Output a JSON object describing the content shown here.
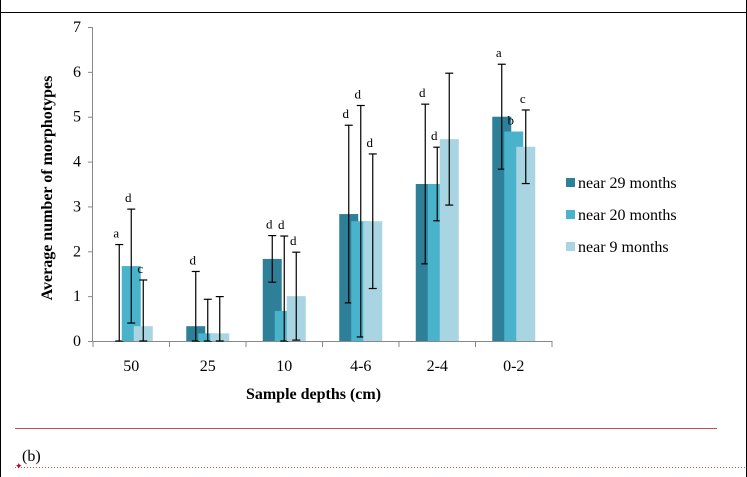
{
  "panel_label": "(b)",
  "colors": {
    "near 29 months": "#2e8098",
    "near 20 months": "#48b3cb",
    "near 9 months": "#a9d4e2",
    "divider": "#c0504d",
    "error_bar": "#000000"
  },
  "chart_data": {
    "type": "bar",
    "title": "",
    "xlabel": "Sample depths (cm)",
    "ylabel": "Average number of morphotypes",
    "ylim": [
      0,
      7
    ],
    "yticks": [
      "0",
      "1",
      "2",
      "3",
      "4",
      "5",
      "6",
      "7"
    ],
    "categories": [
      "50",
      "25",
      "10",
      "4-6",
      "2-4",
      "0-2"
    ],
    "legend_position": "right",
    "grid": false,
    "series": [
      {
        "name": "near 29 months",
        "values": [
          0,
          0.33,
          1.83,
          2.83,
          3.5,
          5.0
        ],
        "error": [
          2.15,
          1.22,
          0.52,
          1.98,
          1.78,
          1.17
        ],
        "letters": [
          "a",
          "d",
          "d",
          "d",
          "d",
          "a"
        ]
      },
      {
        "name": "near 20 months",
        "values": [
          1.67,
          0.17,
          0.67,
          2.67,
          3.5,
          4.67
        ],
        "error": [
          1.27,
          0.76,
          1.67,
          2.58,
          0.82,
          0
        ],
        "letters": [
          "d",
          "",
          "d",
          "d",
          "d",
          "b"
        ]
      },
      {
        "name": "near 9 months",
        "values": [
          0.33,
          0.17,
          1.0,
          2.67,
          4.5,
          4.33
        ],
        "error": [
          1.03,
          0.82,
          0.98,
          1.5,
          1.47,
          0.82
        ],
        "letters": [
          "c",
          "",
          "d",
          "d",
          "",
          "c"
        ]
      }
    ]
  }
}
